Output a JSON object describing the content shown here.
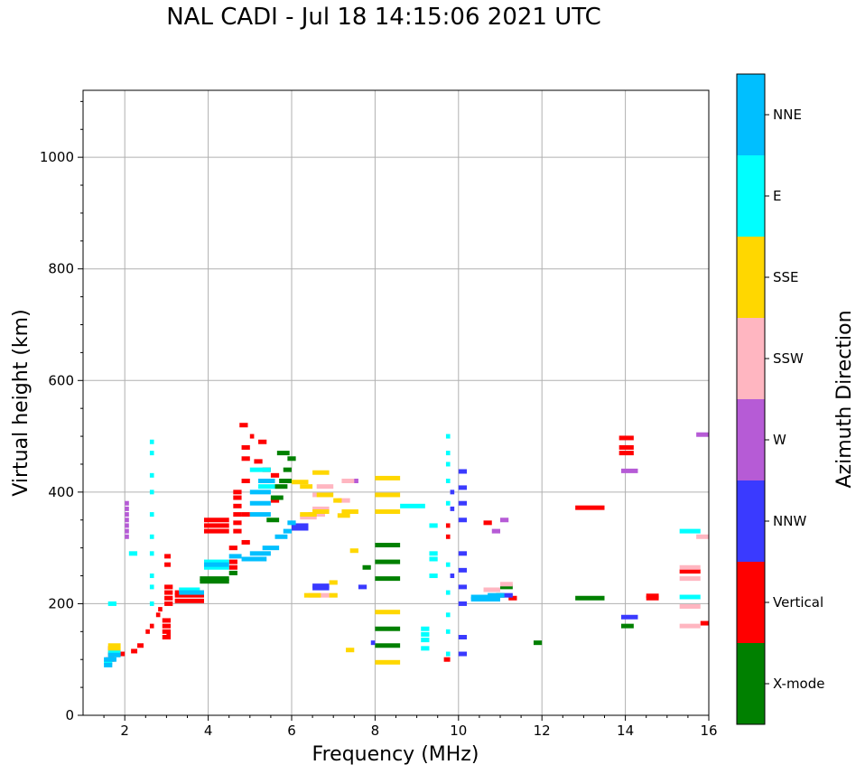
{
  "chart_data": {
    "type": "scatter",
    "title": "NAL CADI - Jul 18 14:15:06 2021 UTC",
    "xlabel": "Frequency (MHz)",
    "ylabel": "Virtual height (km)",
    "xlim": [
      1,
      16
    ],
    "ylim": [
      0,
      1120
    ],
    "x_ticks": [
      2,
      4,
      6,
      8,
      10,
      12,
      14,
      16
    ],
    "y_ticks": [
      0,
      200,
      400,
      600,
      800,
      1000
    ],
    "grid": true,
    "colorbar": {
      "label": "Azimuth Direction",
      "categories": [
        "X-mode",
        "Vertical",
        "NNW",
        "W",
        "SSW",
        "SSE",
        "E",
        "NNE"
      ],
      "colors": {
        "X-mode": "#008000",
        "Vertical": "#ff0000",
        "NNW": "#3a3aff",
        "W": "#b65bd6",
        "SSW": "#ffb6c1",
        "SSE": "#ffd700",
        "E": "#00ffff",
        "NNE": "#00bfff"
      }
    },
    "series": [
      {
        "name": "Vertical",
        "points": [
          [
            1.55,
            1.75,
            100
          ],
          [
            1.6,
            1.8,
            110
          ],
          [
            1.6,
            1.85,
            120
          ],
          [
            1.8,
            2.0,
            110
          ],
          [
            2.15,
            2.3,
            115
          ],
          [
            2.3,
            2.45,
            125
          ],
          [
            2.5,
            2.6,
            150
          ],
          [
            2.6,
            2.7,
            160
          ],
          [
            2.75,
            2.85,
            180
          ],
          [
            2.8,
            2.9,
            190
          ],
          [
            2.9,
            3.1,
            140
          ],
          [
            2.9,
            3.1,
            150
          ],
          [
            2.9,
            3.1,
            160
          ],
          [
            2.9,
            3.1,
            170
          ],
          [
            3.0,
            3.1,
            145
          ],
          [
            2.95,
            3.15,
            200
          ],
          [
            2.95,
            3.15,
            210
          ],
          [
            2.95,
            3.15,
            220
          ],
          [
            2.95,
            3.15,
            230
          ],
          [
            2.95,
            3.1,
            270
          ],
          [
            2.95,
            3.1,
            285
          ],
          [
            3.2,
            3.9,
            205
          ],
          [
            3.2,
            3.9,
            215
          ],
          [
            3.2,
            3.9,
            220
          ],
          [
            3.9,
            4.5,
            330
          ],
          [
            3.9,
            4.5,
            340
          ],
          [
            3.9,
            4.5,
            350
          ],
          [
            4.5,
            4.7,
            265
          ],
          [
            4.5,
            4.7,
            275
          ],
          [
            4.5,
            4.7,
            300
          ],
          [
            4.6,
            4.8,
            330
          ],
          [
            4.6,
            4.8,
            345
          ],
          [
            4.6,
            4.8,
            360
          ],
          [
            4.6,
            4.8,
            375
          ],
          [
            4.6,
            4.8,
            390
          ],
          [
            4.6,
            4.8,
            400
          ],
          [
            4.8,
            5.0,
            310
          ],
          [
            4.8,
            5.0,
            360
          ],
          [
            4.8,
            5.0,
            420
          ],
          [
            4.8,
            5.0,
            460
          ],
          [
            4.8,
            5.0,
            480
          ],
          [
            4.75,
            4.95,
            520
          ],
          [
            5.0,
            5.1,
            500
          ],
          [
            5.2,
            5.4,
            490
          ],
          [
            5.1,
            5.3,
            455
          ],
          [
            5.3,
            5.5,
            440
          ],
          [
            5.5,
            5.7,
            430
          ],
          [
            5.5,
            5.7,
            385
          ],
          [
            6.4,
            6.6,
            360
          ],
          [
            9.65,
            9.8,
            100
          ],
          [
            9.7,
            9.8,
            340
          ],
          [
            9.7,
            9.8,
            320
          ],
          [
            10.6,
            10.8,
            345
          ],
          [
            11.2,
            11.4,
            210
          ],
          [
            12.8,
            13.5,
            372
          ],
          [
            13.85,
            14.2,
            497
          ],
          [
            13.85,
            14.2,
            480
          ],
          [
            13.85,
            14.2,
            470
          ],
          [
            14.5,
            14.8,
            210
          ],
          [
            14.5,
            14.8,
            214
          ],
          [
            15.3,
            15.8,
            258
          ],
          [
            15.8,
            16.0,
            165
          ]
        ]
      },
      {
        "name": "X-mode",
        "points": [
          [
            3.8,
            4.5,
            240
          ],
          [
            3.8,
            4.5,
            245
          ],
          [
            4.5,
            4.7,
            255
          ],
          [
            5.4,
            5.7,
            350
          ],
          [
            5.5,
            5.8,
            390
          ],
          [
            5.6,
            5.9,
            410
          ],
          [
            5.7,
            6.0,
            420
          ],
          [
            5.65,
            5.95,
            470
          ],
          [
            5.8,
            6.0,
            440
          ],
          [
            5.9,
            6.1,
            460
          ],
          [
            7.7,
            7.9,
            265
          ],
          [
            8.0,
            8.6,
            305
          ],
          [
            8.0,
            8.6,
            275
          ],
          [
            8.0,
            8.6,
            245
          ],
          [
            8.0,
            8.6,
            155
          ],
          [
            8.0,
            8.6,
            125
          ],
          [
            10.9,
            11.1,
            215
          ],
          [
            11.0,
            11.3,
            230
          ],
          [
            11.8,
            12.0,
            130
          ],
          [
            12.8,
            13.5,
            210
          ],
          [
            13.9,
            14.2,
            160
          ]
        ]
      },
      {
        "name": "NNW",
        "points": [
          [
            6.0,
            6.4,
            335
          ],
          [
            6.0,
            6.4,
            340
          ],
          [
            6.5,
            6.9,
            228
          ],
          [
            6.5,
            6.9,
            232
          ],
          [
            7.6,
            7.8,
            230
          ],
          [
            7.9,
            8.0,
            130
          ],
          [
            9.8,
            9.9,
            400
          ],
          [
            9.8,
            9.9,
            370
          ],
          [
            9.8,
            9.9,
            250
          ],
          [
            10.0,
            10.2,
            437
          ],
          [
            10.0,
            10.2,
            408
          ],
          [
            10.0,
            10.2,
            380
          ],
          [
            10.0,
            10.2,
            350
          ],
          [
            10.0,
            10.2,
            290
          ],
          [
            10.0,
            10.2,
            260
          ],
          [
            10.0,
            10.2,
            230
          ],
          [
            10.0,
            10.2,
            200
          ],
          [
            10.0,
            10.2,
            140
          ],
          [
            10.0,
            10.2,
            110
          ],
          [
            11.0,
            11.3,
            215
          ],
          [
            13.9,
            14.3,
            176
          ]
        ]
      },
      {
        "name": "W",
        "points": [
          [
            2.0,
            2.1,
            380
          ],
          [
            2.0,
            2.1,
            370
          ],
          [
            2.0,
            2.1,
            360
          ],
          [
            2.0,
            2.1,
            350
          ],
          [
            2.0,
            2.1,
            340
          ],
          [
            2.0,
            2.1,
            330
          ],
          [
            2.0,
            2.1,
            320
          ],
          [
            7.4,
            7.6,
            420
          ],
          [
            10.8,
            11.0,
            330
          ],
          [
            11.0,
            11.2,
            350
          ],
          [
            13.9,
            14.3,
            438
          ],
          [
            15.7,
            16.0,
            503
          ]
        ]
      },
      {
        "name": "SSW",
        "points": [
          [
            6.4,
            6.9,
            215
          ],
          [
            6.5,
            6.9,
            395
          ],
          [
            6.6,
            7.0,
            410
          ],
          [
            6.5,
            6.9,
            370
          ],
          [
            6.2,
            6.6,
            355
          ],
          [
            6.4,
            6.8,
            360
          ],
          [
            7.1,
            7.4,
            385
          ],
          [
            7.2,
            7.5,
            420
          ],
          [
            10.6,
            11.0,
            225
          ],
          [
            11.0,
            11.3,
            235
          ],
          [
            15.3,
            15.8,
            265
          ],
          [
            15.3,
            15.8,
            245
          ],
          [
            15.3,
            15.8,
            195
          ],
          [
            15.3,
            15.8,
            160
          ],
          [
            15.7,
            16.0,
            320
          ]
        ]
      },
      {
        "name": "SSE",
        "points": [
          [
            1.6,
            1.9,
            125
          ],
          [
            1.6,
            1.9,
            118
          ],
          [
            6.2,
            6.6,
            360
          ],
          [
            6.5,
            6.9,
            365
          ],
          [
            6.6,
            7.0,
            395
          ],
          [
            6.5,
            6.9,
            435
          ],
          [
            7.0,
            7.2,
            385
          ],
          [
            7.1,
            7.4,
            358
          ],
          [
            7.2,
            7.6,
            365
          ],
          [
            7.4,
            7.6,
            295
          ],
          [
            7.3,
            7.5,
            117
          ],
          [
            6.9,
            7.1,
            215
          ],
          [
            6.9,
            7.1,
            238
          ],
          [
            6.3,
            6.7,
            215
          ],
          [
            6.0,
            6.4,
            418
          ],
          [
            6.2,
            6.5,
            410
          ],
          [
            8.0,
            8.6,
            425
          ],
          [
            8.0,
            8.6,
            395
          ],
          [
            8.0,
            8.6,
            365
          ],
          [
            8.0,
            8.6,
            185
          ],
          [
            8.0,
            8.6,
            95
          ]
        ]
      },
      {
        "name": "E",
        "points": [
          [
            1.6,
            1.8,
            200
          ],
          [
            1.5,
            1.7,
            95
          ],
          [
            1.6,
            1.9,
            112
          ],
          [
            2.6,
            2.7,
            490
          ],
          [
            2.6,
            2.7,
            470
          ],
          [
            2.6,
            2.7,
            430
          ],
          [
            2.6,
            2.7,
            400
          ],
          [
            2.6,
            2.7,
            360
          ],
          [
            2.6,
            2.7,
            320
          ],
          [
            2.6,
            2.7,
            290
          ],
          [
            2.6,
            2.7,
            250
          ],
          [
            2.6,
            2.7,
            230
          ],
          [
            2.6,
            2.7,
            200
          ],
          [
            2.1,
            2.3,
            290
          ],
          [
            3.3,
            3.8,
            225
          ],
          [
            3.9,
            4.5,
            275
          ],
          [
            3.9,
            4.5,
            265
          ],
          [
            5.0,
            5.5,
            440
          ],
          [
            5.2,
            5.6,
            410
          ],
          [
            8.6,
            9.2,
            375
          ],
          [
            9.3,
            9.5,
            340
          ],
          [
            9.3,
            9.5,
            250
          ],
          [
            9.3,
            9.5,
            290
          ],
          [
            9.3,
            9.5,
            280
          ],
          [
            9.7,
            9.8,
            500
          ],
          [
            9.7,
            9.8,
            470
          ],
          [
            9.7,
            9.8,
            450
          ],
          [
            9.7,
            9.8,
            420
          ],
          [
            9.7,
            9.8,
            380
          ],
          [
            9.7,
            9.8,
            270
          ],
          [
            9.7,
            9.8,
            220
          ],
          [
            9.7,
            9.8,
            180
          ],
          [
            9.7,
            9.8,
            150
          ],
          [
            9.7,
            9.8,
            110
          ],
          [
            9.1,
            9.3,
            155
          ],
          [
            9.1,
            9.3,
            145
          ],
          [
            9.1,
            9.3,
            135
          ],
          [
            9.1,
            9.3,
            120
          ],
          [
            15.3,
            15.8,
            330
          ],
          [
            15.3,
            15.8,
            212
          ]
        ]
      },
      {
        "name": "NNE",
        "points": [
          [
            1.5,
            1.7,
            90
          ],
          [
            1.5,
            1.8,
            100
          ],
          [
            1.6,
            1.9,
            108
          ],
          [
            3.3,
            3.9,
            220
          ],
          [
            3.9,
            4.5,
            270
          ],
          [
            4.5,
            4.8,
            285
          ],
          [
            4.8,
            5.4,
            280
          ],
          [
            5.0,
            5.5,
            290
          ],
          [
            5.3,
            5.7,
            300
          ],
          [
            5.6,
            5.9,
            320
          ],
          [
            5.8,
            6.0,
            330
          ],
          [
            5.9,
            6.1,
            345
          ],
          [
            5.0,
            5.5,
            360
          ],
          [
            5.0,
            5.5,
            380
          ],
          [
            5.0,
            5.5,
            400
          ],
          [
            5.2,
            5.6,
            420
          ],
          [
            10.3,
            11.0,
            208
          ],
          [
            10.3,
            11.0,
            212
          ],
          [
            10.7,
            11.1,
            215
          ]
        ]
      }
    ]
  }
}
